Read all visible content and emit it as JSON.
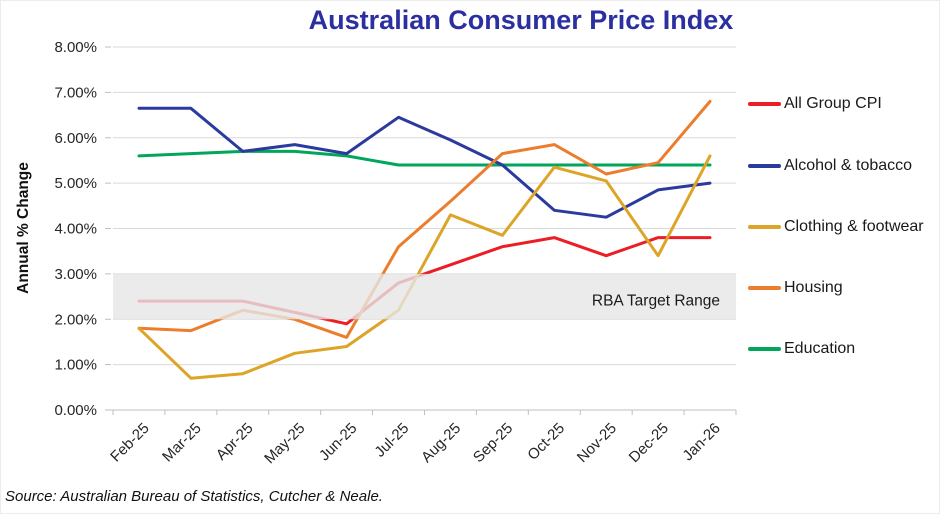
{
  "title": "Australian Consumer Price Index",
  "source": "Source: Australian Bureau of Statistics, Cutcher & Neale.",
  "y_axis": {
    "label": "Annual % Change",
    "tick_labels": [
      "0.00%",
      "1.00%",
      "2.00%",
      "3.00%",
      "4.00%",
      "5.00%",
      "6.00%",
      "7.00%",
      "8.00%"
    ]
  },
  "x_axis": {
    "tick_labels": [
      "Feb-25",
      "Mar-25",
      "Apr-25",
      "May-25",
      "Jun-25",
      "Jul-25",
      "Aug-25",
      "Sep-25",
      "Oct-25",
      "Nov-25",
      "Dec-25",
      "Jan-26"
    ]
  },
  "annotation": {
    "rba_band_label": "RBA Target Range"
  },
  "colors": {
    "title": "#2B2FA0",
    "grid": "#D9D9D9",
    "axis": "#BFBFBF",
    "axis_text": "#262626",
    "band_fill": "#E6E6E6",
    "band_text": "#1a1a1a"
  },
  "chart_data": {
    "type": "line",
    "title": "Australian Consumer Price Index",
    "xlabel": "",
    "ylabel": "Annual % Change",
    "categories": [
      "Feb-25",
      "Mar-25",
      "Apr-25",
      "May-25",
      "Jun-25",
      "Jul-25",
      "Aug-25",
      "Sep-25",
      "Oct-25",
      "Nov-25",
      "Dec-25",
      "Jan-26"
    ],
    "series": [
      {
        "name": "All Group CPI",
        "color": "#EC1D24",
        "values": [
          2.4,
          2.4,
          2.4,
          2.15,
          1.9,
          2.8,
          3.2,
          3.6,
          3.8,
          3.4,
          3.8,
          3.8
        ]
      },
      {
        "name": "Alcohol & tobacco",
        "color": "#2B3A9D",
        "values": [
          6.65,
          6.65,
          5.7,
          5.85,
          5.65,
          6.45,
          5.95,
          5.4,
          4.4,
          4.25,
          4.85,
          5.0
        ]
      },
      {
        "name": "Clothing & footwear",
        "color": "#DCA527",
        "values": [
          1.8,
          0.7,
          0.8,
          1.25,
          1.4,
          2.2,
          4.3,
          3.85,
          5.35,
          5.05,
          3.4,
          5.6
        ]
      },
      {
        "name": "Housing",
        "color": "#EB7D2C",
        "values": [
          1.8,
          1.75,
          2.2,
          2.0,
          1.6,
          3.6,
          4.6,
          5.65,
          5.85,
          5.2,
          5.45,
          6.8
        ]
      },
      {
        "name": "Education",
        "color": "#00A65C",
        "values": [
          5.6,
          5.65,
          5.7,
          5.7,
          5.6,
          5.4,
          5.4,
          5.4,
          5.4,
          5.4,
          5.4,
          5.4
        ]
      }
    ],
    "ylim": [
      0,
      8
    ],
    "y_tick_labels": [
      "0.00%",
      "1.00%",
      "2.00%",
      "3.00%",
      "4.00%",
      "5.00%",
      "6.00%",
      "7.00%",
      "8.00%"
    ],
    "grid": "horizontal",
    "legend_position": "right",
    "band": {
      "from": 2,
      "to": 3,
      "label": "RBA Target Range",
      "color": "#E6E6E6"
    }
  }
}
